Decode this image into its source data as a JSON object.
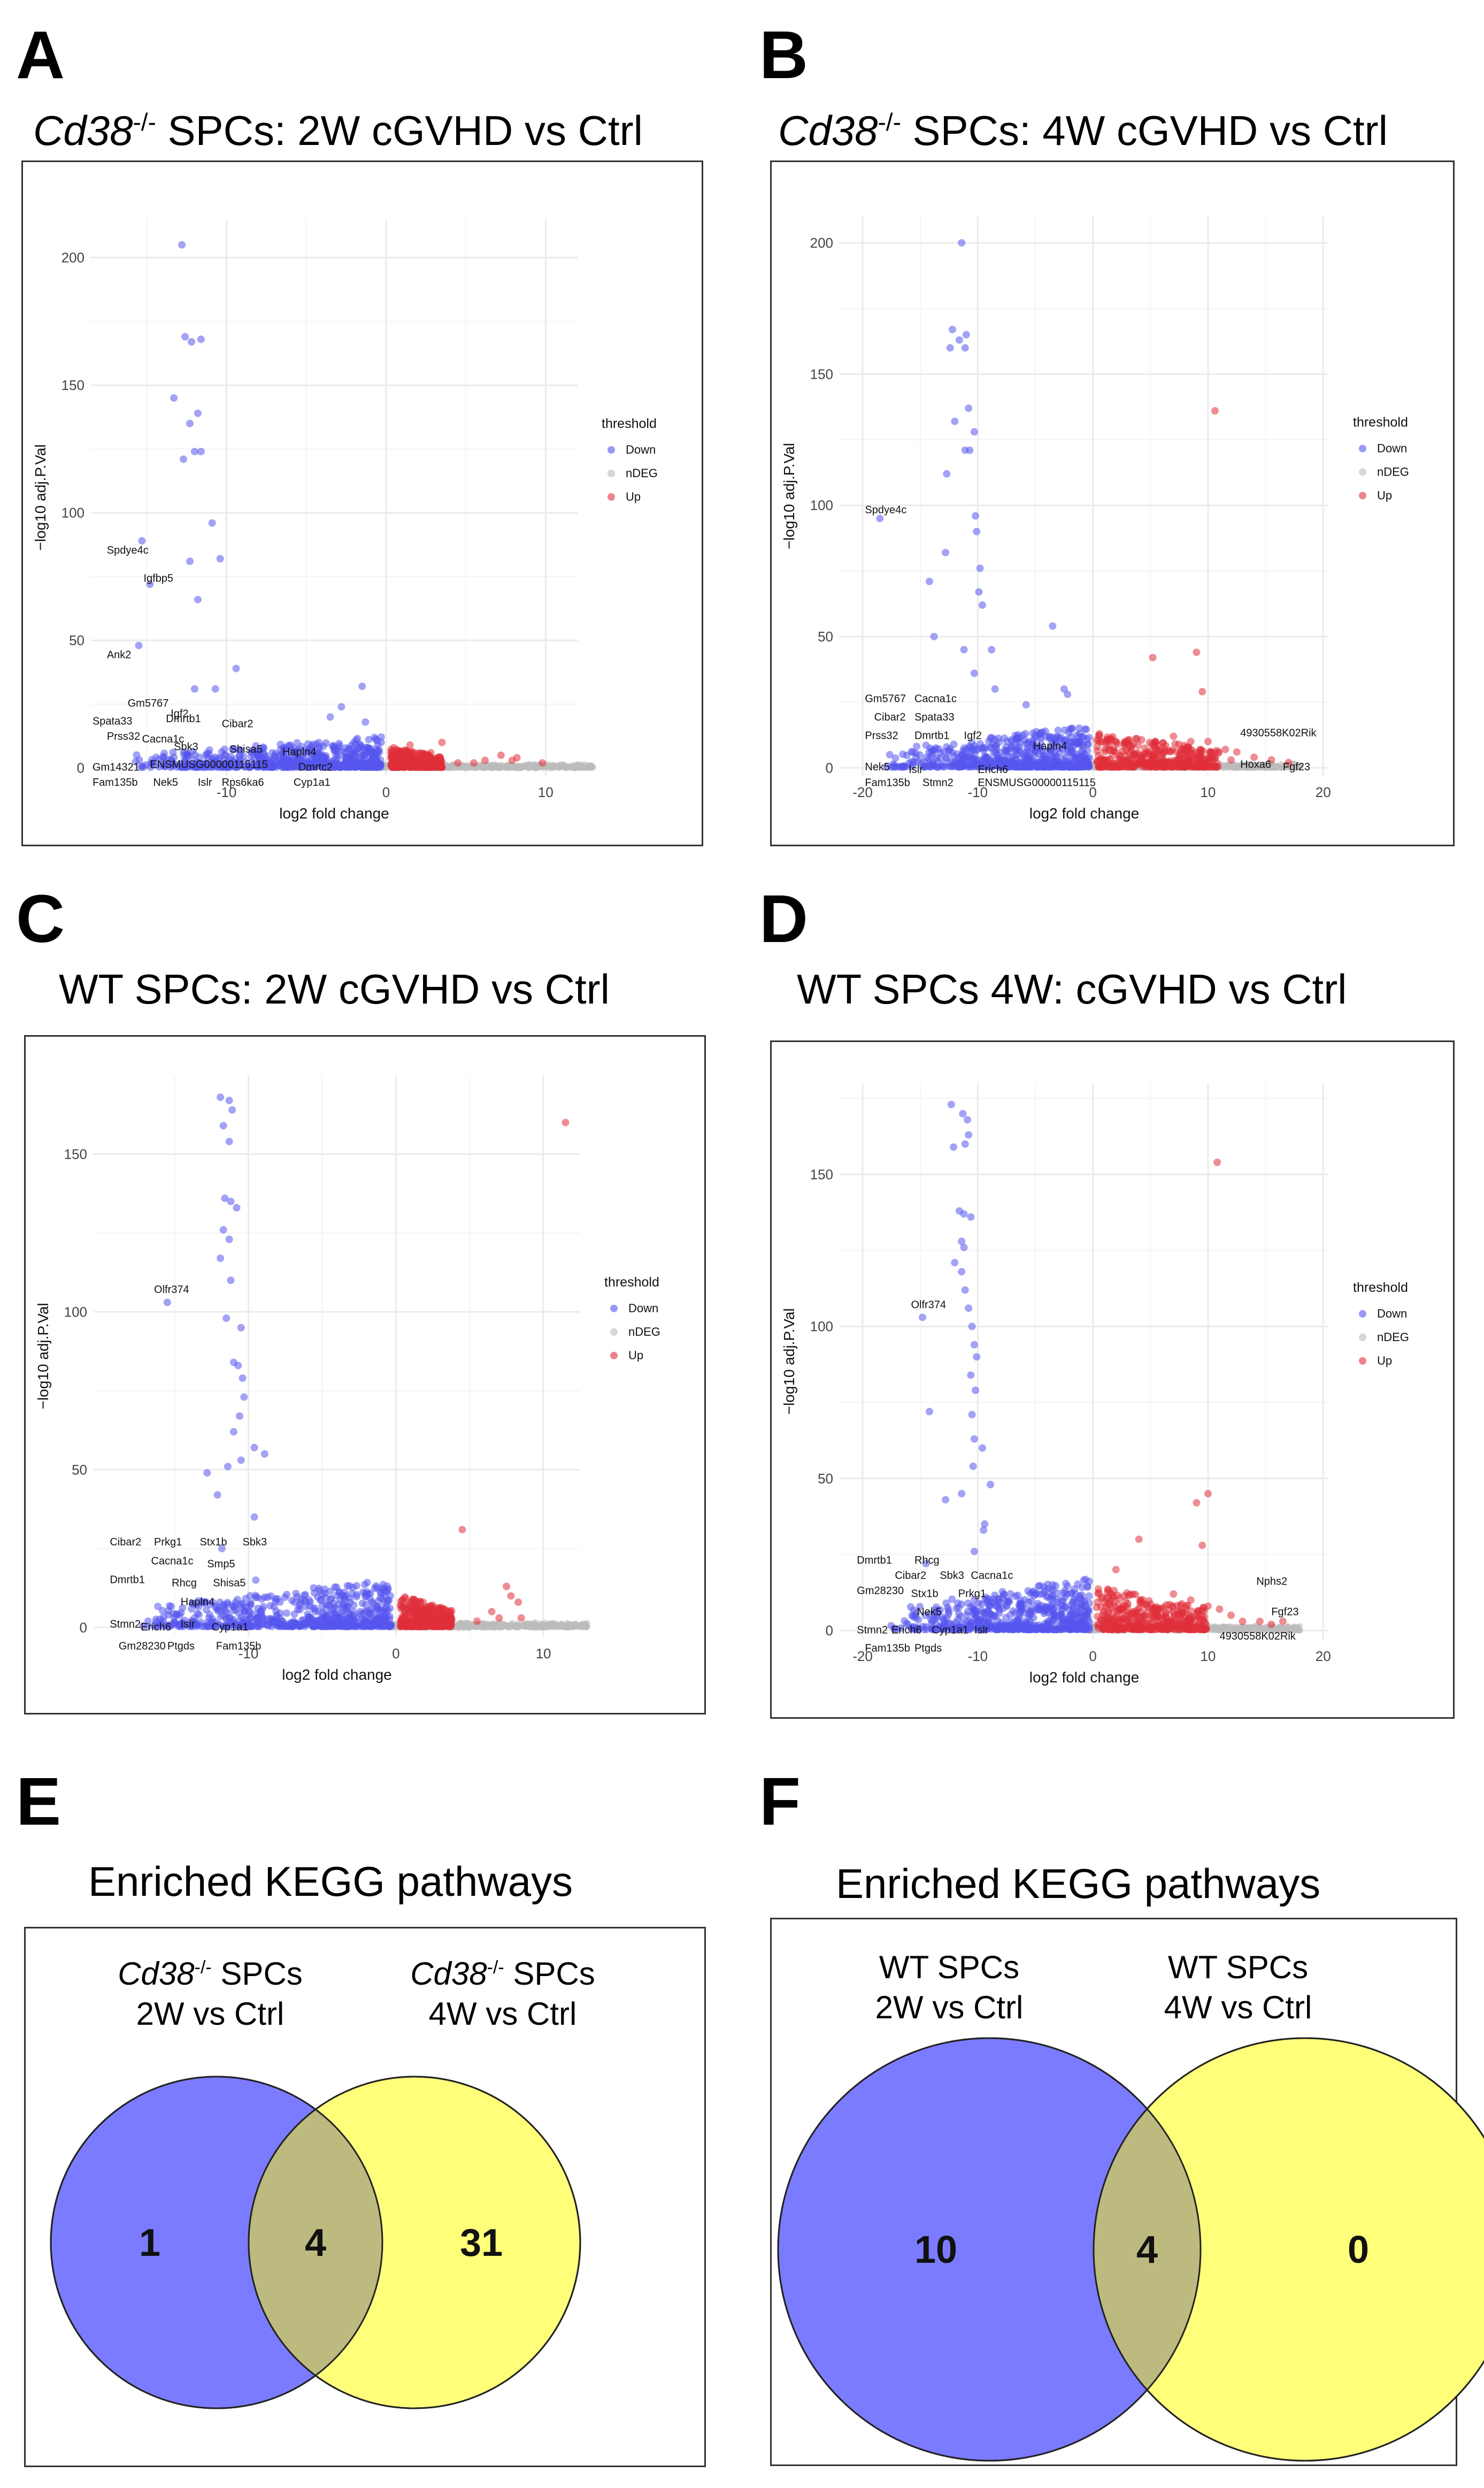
{
  "colors": {
    "down": "#5555ee",
    "ndeg": "#bbbbbb",
    "up": "#e0303a",
    "grid": "#ebebeb",
    "venn_left": "#7b7bff",
    "venn_right": "#ffff7a",
    "venn_overlap": "#bdba80"
  },
  "legend": {
    "title": "threshold",
    "items": [
      "Down",
      "nDEG",
      "Up"
    ]
  },
  "panels": {
    "A": {
      "letter": "A",
      "title_italic": "Cd38",
      "title_sup": "-/-",
      "title_rest": " SPCs: 2W cGVHD vs Ctrl"
    },
    "B": {
      "letter": "B",
      "title_italic": "Cd38",
      "title_sup": "-/-",
      "title_rest": " SPCs: 4W cGVHD vs Ctrl"
    },
    "C": {
      "letter": "C",
      "title": "WT SPCs: 2W cGVHD vs Ctrl"
    },
    "D": {
      "letter": "D",
      "title": "WT SPCs 4W: cGVHD vs Ctrl"
    },
    "E": {
      "letter": "E",
      "title": "Enriched KEGG pathways",
      "left_italic": "Cd38",
      "left_sup": "-/-",
      "left_rest": " SPCs",
      "left_line2": "2W vs Ctrl",
      "right_italic": "Cd38",
      "right_sup": "-/-",
      "right_rest": " SPCs",
      "right_line2": "4W vs Ctrl"
    },
    "F": {
      "letter": "F",
      "title": "Enriched KEGG pathways",
      "left_line1": "WT SPCs",
      "left_line2": "2W vs Ctrl",
      "right_line1": "WT SPCs",
      "right_line2": "4W vs Ctrl"
    }
  },
  "chart_data": [
    {
      "id": "A",
      "type": "scatter",
      "title": "Cd38-/- SPCs: 2W cGVHD vs Ctrl",
      "xlabel": "log2 fold change",
      "ylabel": "−log10 adj.P.Val",
      "xlim": [
        -18.5,
        12
      ],
      "ylim": [
        -3,
        215
      ],
      "xticks": [
        -10,
        0,
        10
      ],
      "yticks": [
        0,
        50,
        100,
        150,
        200
      ],
      "down_points": [
        [
          -12.8,
          205
        ],
        [
          -12.6,
          169
        ],
        [
          -12.2,
          167
        ],
        [
          -11.6,
          168
        ],
        [
          -13.3,
          145
        ],
        [
          -11.8,
          139
        ],
        [
          -12.3,
          135
        ],
        [
          -12,
          124
        ],
        [
          -11.6,
          124
        ],
        [
          -12.7,
          121
        ],
        [
          -10.9,
          96
        ],
        [
          -15.3,
          89
        ],
        [
          -10.4,
          82
        ],
        [
          -14.8,
          72
        ],
        [
          -12.3,
          81
        ],
        [
          -11.8,
          66
        ],
        [
          -15.5,
          48
        ],
        [
          -9.4,
          39
        ],
        [
          -12,
          31
        ],
        [
          -10.7,
          31
        ],
        [
          -1.5,
          32
        ],
        [
          -2.8,
          24
        ],
        [
          -3.5,
          20
        ],
        [
          -1.3,
          18
        ]
      ],
      "down_cluster": {
        "x_min": -16,
        "x_max": -0.3,
        "y_max": 12
      },
      "up_points": [
        [
          3.5,
          10
        ],
        [
          1.5,
          9
        ],
        [
          2.8,
          6
        ],
        [
          6.2,
          3
        ],
        [
          7.2,
          5
        ],
        [
          7.9,
          3
        ],
        [
          8.2,
          4
        ],
        [
          9.8,
          2
        ],
        [
          5.5,
          2
        ],
        [
          4.5,
          2
        ]
      ],
      "up_cluster": {
        "x_min": 0.3,
        "x_max": 3.5,
        "y_max": 8
      },
      "ndeg_range": [
        -1,
        13
      ],
      "labels": [
        {
          "text": "Spdye4c",
          "x": -17.5,
          "y": 84
        },
        {
          "text": "Igfbp5",
          "x": -15.2,
          "y": 73
        },
        {
          "text": "Ank2",
          "x": -17.5,
          "y": 43
        },
        {
          "text": "Gm5767",
          "x": -16.2,
          "y": 24
        },
        {
          "text": "Spata33",
          "x": -18.4,
          "y": 17
        },
        {
          "text": "Prss32",
          "x": -17.5,
          "y": 11
        },
        {
          "text": "Igf2",
          "x": -13.5,
          "y": 20
        },
        {
          "text": "Dmrtb1",
          "x": -13.8,
          "y": 18
        },
        {
          "text": "Cibar2",
          "x": -10.3,
          "y": 16
        },
        {
          "text": "Cacna1c",
          "x": -15.3,
          "y": 10
        },
        {
          "text": "Sbk3",
          "x": -13.3,
          "y": 7
        },
        {
          "text": "Shisa5",
          "x": -9.8,
          "y": 6
        },
        {
          "text": "Hapln4",
          "x": -6.5,
          "y": 5
        },
        {
          "text": "Gm14321",
          "x": -18.4,
          "y": -1
        },
        {
          "text": "ENSMUSG00000115115",
          "x": -14.8,
          "y": 0
        },
        {
          "text": "Dmrtc2",
          "x": -5.5,
          "y": -1
        },
        {
          "text": "Fam135b",
          "x": -18.4,
          "y": -7
        },
        {
          "text": "Nek5",
          "x": -14.6,
          "y": -7
        },
        {
          "text": "Islr",
          "x": -11.8,
          "y": -7
        },
        {
          "text": "Rps6ka6",
          "x": -10.3,
          "y": -7
        },
        {
          "text": "Cyp1a1",
          "x": -5.8,
          "y": -7
        }
      ]
    },
    {
      "id": "B",
      "type": "scatter",
      "title": "Cd38-/- SPCs: 4W cGVHD vs Ctrl",
      "xlabel": "log2 fold change",
      "ylabel": "−log10 adj.P.Val",
      "xlim": [
        -22,
        20.5
      ],
      "ylim": [
        -3,
        210
      ],
      "xticks": [
        -20,
        -10,
        0,
        10,
        20
      ],
      "yticks": [
        0,
        50,
        100,
        150,
        200
      ],
      "down_points": [
        [
          -11.4,
          200
        ],
        [
          -12.2,
          167
        ],
        [
          -11.6,
          163
        ],
        [
          -11,
          165
        ],
        [
          -12.4,
          160
        ],
        [
          -11.1,
          160
        ],
        [
          -10.8,
          137
        ],
        [
          -12,
          132
        ],
        [
          -10.3,
          128
        ],
        [
          -11.1,
          121
        ],
        [
          -10.7,
          121
        ],
        [
          -12.7,
          112
        ],
        [
          -10.2,
          96
        ],
        [
          -18.5,
          95
        ],
        [
          -10.1,
          90
        ],
        [
          -14.2,
          71
        ],
        [
          -12.8,
          82
        ],
        [
          -9.8,
          76
        ],
        [
          -9.9,
          67
        ],
        [
          -9.6,
          62
        ],
        [
          -13.8,
          50
        ],
        [
          -11.2,
          45
        ],
        [
          -8.8,
          45
        ],
        [
          -3.5,
          54
        ],
        [
          -10.3,
          36
        ],
        [
          -8.5,
          30
        ],
        [
          -5.8,
          24
        ],
        [
          -2.5,
          30
        ],
        [
          -2.2,
          28
        ]
      ],
      "down_cluster": {
        "x_min": -18,
        "x_max": -0.3,
        "y_max": 16
      },
      "up_points": [
        [
          10.6,
          136
        ],
        [
          9,
          44
        ],
        [
          5.2,
          42
        ],
        [
          9.5,
          29
        ],
        [
          7,
          12
        ],
        [
          8.5,
          10
        ],
        [
          10,
          10
        ],
        [
          12.5,
          6
        ],
        [
          14,
          4
        ],
        [
          15.5,
          3
        ],
        [
          17,
          2
        ],
        [
          12,
          3
        ],
        [
          11.5,
          7
        ],
        [
          6,
          5
        ],
        [
          3.5,
          9
        ]
      ],
      "up_cluster": {
        "x_min": 0.3,
        "x_max": 11,
        "y_max": 13
      },
      "ndeg_range": [
        -1,
        18
      ],
      "labels": [
        {
          "text": "Spdye4c",
          "x": -19.8,
          "y": 97
        },
        {
          "text": "Gm5767",
          "x": -19.8,
          "y": 25
        },
        {
          "text": "Cacna1c",
          "x": -15.5,
          "y": 25
        },
        {
          "text": "Cibar2",
          "x": -19,
          "y": 18
        },
        {
          "text": "Spata33",
          "x": -15.5,
          "y": 18
        },
        {
          "text": "Prss32",
          "x": -19.8,
          "y": 11
        },
        {
          "text": "Dmrtb1",
          "x": -15.5,
          "y": 11
        },
        {
          "text": "Igf2",
          "x": -11.2,
          "y": 11
        },
        {
          "text": "Hapln4",
          "x": -5.2,
          "y": 7
        },
        {
          "text": "Nek5",
          "x": -19.8,
          "y": -1
        },
        {
          "text": "Islr",
          "x": -16,
          "y": -2
        },
        {
          "text": "Erich6",
          "x": -10,
          "y": -2
        },
        {
          "text": "Fam135b",
          "x": -19.8,
          "y": -7
        },
        {
          "text": "Stmn2",
          "x": -14.8,
          "y": -7
        },
        {
          "text": "ENSMUSG00000115115",
          "x": -10,
          "y": -7
        },
        {
          "text": "4930558K02Rik",
          "x": 12.8,
          "y": 12
        },
        {
          "text": "Hoxa6",
          "x": 12.8,
          "y": 0
        },
        {
          "text": "Fgf23",
          "x": 16.5,
          "y": -1
        }
      ]
    },
    {
      "id": "C",
      "type": "scatter",
      "title": "WT SPCs: 2W cGVHD vs Ctrl",
      "xlabel": "log2 fold change",
      "ylabel": "−log10 adj.P.Val",
      "xlim": [
        -20.5,
        12.5
      ],
      "ylim": [
        -3,
        175
      ],
      "xticks": [
        -10,
        0,
        10
      ],
      "yticks": [
        0,
        50,
        100,
        150
      ],
      "down_points": [
        [
          -11.9,
          168
        ],
        [
          -11.3,
          167
        ],
        [
          -11.1,
          164
        ],
        [
          -11.7,
          159
        ],
        [
          -11.3,
          154
        ],
        [
          -11.6,
          136
        ],
        [
          -11.2,
          135
        ],
        [
          -10.8,
          133
        ],
        [
          -11.7,
          126
        ],
        [
          -11.3,
          123
        ],
        [
          -11.9,
          117
        ],
        [
          -11.2,
          110
        ],
        [
          -11.5,
          98
        ],
        [
          -10.5,
          95
        ],
        [
          -15.5,
          103
        ],
        [
          -11,
          84
        ],
        [
          -10.7,
          83
        ],
        [
          -10.4,
          79
        ],
        [
          -10.3,
          73
        ],
        [
          -10.6,
          67
        ],
        [
          -11,
          62
        ],
        [
          -9.6,
          57
        ],
        [
          -10.5,
          53
        ],
        [
          -11.4,
          51
        ],
        [
          -12.8,
          49
        ],
        [
          -12.1,
          42
        ],
        [
          -8.9,
          55
        ],
        [
          -9.6,
          35
        ],
        [
          -11.8,
          25
        ],
        [
          -9.5,
          15
        ]
      ],
      "down_cluster": {
        "x_min": -17.5,
        "x_max": -0.3,
        "y_max": 15
      },
      "up_points": [
        [
          11.5,
          160
        ],
        [
          4.5,
          31
        ],
        [
          7.5,
          13
        ],
        [
          7.8,
          10
        ],
        [
          8.3,
          8
        ],
        [
          6.5,
          5
        ],
        [
          7,
          3
        ],
        [
          8.5,
          3
        ],
        [
          5.5,
          2
        ],
        [
          3.5,
          5
        ]
      ],
      "up_cluster": {
        "x_min": 0.3,
        "x_max": 3.8,
        "y_max": 10
      },
      "ndeg_range": [
        -1,
        13
      ],
      "labels": [
        {
          "text": "Olfr374",
          "x": -16.4,
          "y": 106
        },
        {
          "text": "Cibar2",
          "x": -19.4,
          "y": 26
        },
        {
          "text": "Prkg1",
          "x": -16.4,
          "y": 26
        },
        {
          "text": "Stx1b",
          "x": -13.3,
          "y": 26
        },
        {
          "text": "Sbk3",
          "x": -10.4,
          "y": 26
        },
        {
          "text": "Cacna1c",
          "x": -16.6,
          "y": 20
        },
        {
          "text": "Smp5",
          "x": -12.8,
          "y": 19
        },
        {
          "text": "Dmrtb1",
          "x": -19.4,
          "y": 14
        },
        {
          "text": "Rhcg",
          "x": -15.2,
          "y": 13
        },
        {
          "text": "Shisa5",
          "x": -12.4,
          "y": 13
        },
        {
          "text": "Hapln4",
          "x": -14.6,
          "y": 7
        },
        {
          "text": "Stmn2",
          "x": -19.4,
          "y": 0
        },
        {
          "text": "Erich6",
          "x": -17.3,
          "y": -1
        },
        {
          "text": "Islr",
          "x": -14.6,
          "y": 0
        },
        {
          "text": "Cyp1a1",
          "x": -12.5,
          "y": -1
        },
        {
          "text": "Gm28230",
          "x": -18.8,
          "y": -7
        },
        {
          "text": "Ptgds",
          "x": -15.5,
          "y": -7
        },
        {
          "text": "Fam135b",
          "x": -12.2,
          "y": -7
        }
      ]
    },
    {
      "id": "D",
      "type": "scatter",
      "title": "WT SPCs 4W: cGVHD vs Ctrl",
      "xlabel": "log2 fold change",
      "ylabel": "−log10 adj.P.Val",
      "xlim": [
        -22,
        20.5
      ],
      "ylim": [
        -3,
        180
      ],
      "xticks": [
        -20,
        -10,
        0,
        10,
        20
      ],
      "yticks": [
        0,
        50,
        100,
        150
      ],
      "down_points": [
        [
          -12.3,
          173
        ],
        [
          -11.3,
          170
        ],
        [
          -10.9,
          168
        ],
        [
          -10.8,
          163
        ],
        [
          -11.1,
          160
        ],
        [
          -12.1,
          159
        ],
        [
          -11.6,
          138
        ],
        [
          -11.2,
          137
        ],
        [
          -10.6,
          136
        ],
        [
          -11.4,
          128
        ],
        [
          -11.2,
          126
        ],
        [
          -12,
          121
        ],
        [
          -11.4,
          118
        ],
        [
          -11.1,
          112
        ],
        [
          -10.8,
          106
        ],
        [
          -14.8,
          103
        ],
        [
          -10.5,
          100
        ],
        [
          -10.3,
          94
        ],
        [
          -10.1,
          90
        ],
        [
          -10.6,
          84
        ],
        [
          -10.2,
          79
        ],
        [
          -10.5,
          71
        ],
        [
          -14.2,
          72
        ],
        [
          -10.3,
          63
        ],
        [
          -9.6,
          60
        ],
        [
          -10.4,
          54
        ],
        [
          -11.4,
          45
        ],
        [
          -12.8,
          43
        ],
        [
          -8.9,
          48
        ],
        [
          -9.4,
          35
        ],
        [
          -9.5,
          33
        ],
        [
          -14.5,
          22
        ],
        [
          -10.3,
          26
        ]
      ],
      "down_cluster": {
        "x_min": -18,
        "x_max": -0.3,
        "y_max": 17
      },
      "up_points": [
        [
          10.8,
          154
        ],
        [
          10,
          45
        ],
        [
          9,
          42
        ],
        [
          4,
          30
        ],
        [
          9.5,
          28
        ],
        [
          2,
          20
        ],
        [
          7,
          12
        ],
        [
          8.5,
          10
        ],
        [
          10,
          8
        ],
        [
          12,
          5
        ],
        [
          13,
          3
        ],
        [
          14.5,
          3
        ],
        [
          15.5,
          2
        ],
        [
          16.5,
          3
        ],
        [
          11,
          7
        ],
        [
          5.5,
          6
        ]
      ],
      "up_cluster": {
        "x_min": 0.3,
        "x_max": 10,
        "y_max": 14
      },
      "ndeg_range": [
        -1,
        18
      ],
      "labels": [
        {
          "text": "Olfr374",
          "x": -15.8,
          "y": 106
        },
        {
          "text": "Dmrtb1",
          "x": -20.5,
          "y": 22
        },
        {
          "text": "Rhcg",
          "x": -15.5,
          "y": 22
        },
        {
          "text": "Cibar2",
          "x": -17.2,
          "y": 17
        },
        {
          "text": "Sbk3",
          "x": -13.3,
          "y": 17
        },
        {
          "text": "Cacna1c",
          "x": -10.6,
          "y": 17
        },
        {
          "text": "Gm28230",
          "x": -20.5,
          "y": 12
        },
        {
          "text": "Stx1b",
          "x": -15.8,
          "y": 11
        },
        {
          "text": "Prkg1",
          "x": -11.7,
          "y": 11
        },
        {
          "text": "Nek5",
          "x": -15.3,
          "y": 5
        },
        {
          "text": "Stmn2",
          "x": -20.5,
          "y": -1
        },
        {
          "text": "Erich6",
          "x": -17.5,
          "y": -1
        },
        {
          "text": "Cyp1a1",
          "x": -14,
          "y": -1
        },
        {
          "text": "Islr",
          "x": -10.3,
          "y": -1
        },
        {
          "text": "Fam135b",
          "x": -19.8,
          "y": -7
        },
        {
          "text": "Ptgds",
          "x": -15.5,
          "y": -7
        },
        {
          "text": "Nphs2",
          "x": 14.2,
          "y": 15
        },
        {
          "text": "Fgf23",
          "x": 15.5,
          "y": 5
        },
        {
          "text": "4930558K02Rik",
          "x": 11,
          "y": -3
        }
      ]
    },
    {
      "id": "E",
      "type": "venn",
      "title": "Enriched KEGG pathways",
      "sets": [
        "Cd38-/- SPCs 2W vs Ctrl",
        "Cd38-/- SPCs 4W vs Ctrl"
      ],
      "left_only": 1,
      "overlap": 4,
      "right_only": 31
    },
    {
      "id": "F",
      "type": "venn",
      "title": "Enriched KEGG pathways",
      "sets": [
        "WT SPCs 2W vs Ctrl",
        "WT SPCs 4W vs Ctrl"
      ],
      "left_only": 10,
      "overlap": 4,
      "right_only": 0
    }
  ]
}
